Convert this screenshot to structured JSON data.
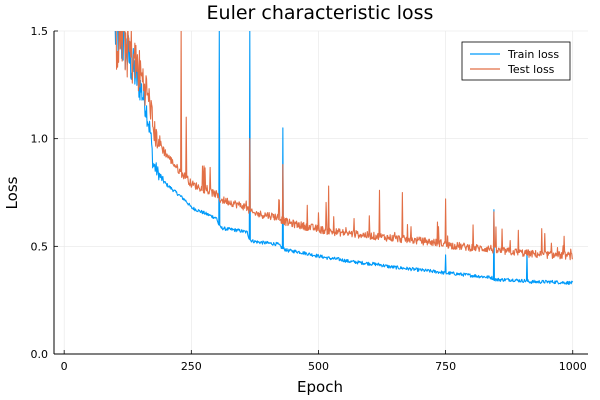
{
  "chart_data": {
    "type": "line",
    "title": "Euler characteristic loss",
    "xlabel": "Epoch",
    "ylabel": "Loss",
    "xlim": [
      -20,
      1030
    ],
    "ylim": [
      0.0,
      1.5
    ],
    "x_ticks": [
      0,
      250,
      500,
      750,
      1000
    ],
    "x_tick_labels": [
      "0",
      "250",
      "500",
      "750",
      "1000"
    ],
    "y_ticks": [
      0.0,
      0.5,
      1.0,
      1.5
    ],
    "y_tick_labels": [
      "0.0",
      "0.5",
      "1.0",
      "1.5"
    ],
    "grid": true,
    "legend_position": "top-right",
    "series": [
      {
        "name": "Train loss",
        "color": "#009af9",
        "x": [
          100,
          110,
          120,
          130,
          140,
          150,
          160,
          170,
          175,
          180,
          190,
          200,
          210,
          220,
          230,
          240,
          250,
          260,
          270,
          280,
          290,
          300,
          305,
          310,
          320,
          340,
          360,
          365,
          370,
          380,
          400,
          420,
          430,
          435,
          440,
          460,
          480,
          500,
          520,
          540,
          560,
          580,
          600,
          620,
          640,
          660,
          680,
          700,
          720,
          740,
          750,
          760,
          780,
          800,
          820,
          840,
          845,
          850,
          860,
          880,
          900,
          910,
          915,
          920,
          940,
          960,
          980,
          1000
        ],
        "y": [
          1.5,
          1.47,
          1.42,
          1.36,
          1.3,
          1.24,
          1.16,
          1.02,
          0.88,
          0.86,
          0.82,
          0.79,
          0.77,
          0.75,
          0.73,
          0.71,
          0.68,
          0.67,
          0.66,
          0.65,
          0.64,
          0.63,
          0.59,
          0.585,
          0.58,
          0.575,
          0.565,
          0.53,
          0.525,
          0.52,
          0.515,
          0.51,
          0.49,
          0.485,
          0.48,
          0.475,
          0.465,
          0.455,
          0.445,
          0.44,
          0.43,
          0.425,
          0.42,
          0.415,
          0.405,
          0.4,
          0.395,
          0.39,
          0.385,
          0.38,
          0.375,
          0.375,
          0.37,
          0.365,
          0.36,
          0.355,
          0.35,
          0.345,
          0.345,
          0.345,
          0.34,
          0.34,
          0.335,
          0.335,
          0.335,
          0.335,
          0.332,
          0.33
        ]
      },
      {
        "name": "Test loss",
        "color": "#e26f46",
        "x": [
          100,
          110,
          120,
          130,
          140,
          150,
          160,
          170,
          175,
          180,
          190,
          200,
          210,
          220,
          230,
          240,
          250,
          260,
          270,
          280,
          290,
          300,
          305,
          310,
          320,
          340,
          360,
          365,
          370,
          380,
          400,
          420,
          430,
          435,
          440,
          460,
          480,
          500,
          520,
          540,
          560,
          580,
          600,
          620,
          640,
          660,
          680,
          700,
          720,
          740,
          750,
          760,
          780,
          800,
          820,
          840,
          845,
          850,
          860,
          880,
          900,
          910,
          915,
          920,
          940,
          960,
          980,
          1000
        ],
        "y": [
          1.5,
          1.48,
          1.45,
          1.4,
          1.35,
          1.3,
          1.24,
          1.15,
          1.05,
          1.01,
          0.97,
          0.93,
          0.9,
          0.87,
          0.84,
          0.82,
          0.79,
          0.78,
          0.77,
          0.76,
          0.75,
          0.74,
          0.72,
          0.715,
          0.71,
          0.695,
          0.68,
          0.66,
          0.655,
          0.65,
          0.645,
          0.635,
          0.62,
          0.615,
          0.61,
          0.6,
          0.59,
          0.58,
          0.57,
          0.565,
          0.56,
          0.555,
          0.55,
          0.545,
          0.54,
          0.535,
          0.53,
          0.525,
          0.52,
          0.515,
          0.51,
          0.505,
          0.5,
          0.495,
          0.49,
          0.49,
          0.48,
          0.48,
          0.478,
          0.475,
          0.47,
          0.468,
          0.465,
          0.465,
          0.462,
          0.46,
          0.458,
          0.455
        ]
      }
    ],
    "spikes": [
      {
        "series": 0,
        "x": 305,
        "y": 1.5
      },
      {
        "series": 0,
        "x": 365,
        "y": 1.5
      },
      {
        "series": 0,
        "x": 430,
        "y": 1.05
      },
      {
        "series": 0,
        "x": 750,
        "y": 0.46
      },
      {
        "series": 0,
        "x": 845,
        "y": 0.67
      },
      {
        "series": 0,
        "x": 910,
        "y": 0.48
      },
      {
        "series": 1,
        "x": 230,
        "y": 1.5
      },
      {
        "series": 1,
        "x": 240,
        "y": 1.1
      },
      {
        "series": 1,
        "x": 365,
        "y": 1.0
      },
      {
        "series": 1,
        "x": 430,
        "y": 0.88
      },
      {
        "series": 1,
        "x": 520,
        "y": 0.78
      },
      {
        "series": 1,
        "x": 620,
        "y": 0.76
      },
      {
        "series": 1,
        "x": 665,
        "y": 0.75
      },
      {
        "series": 1,
        "x": 750,
        "y": 0.72
      },
      {
        "series": 1,
        "x": 845,
        "y": 0.66
      }
    ]
  }
}
